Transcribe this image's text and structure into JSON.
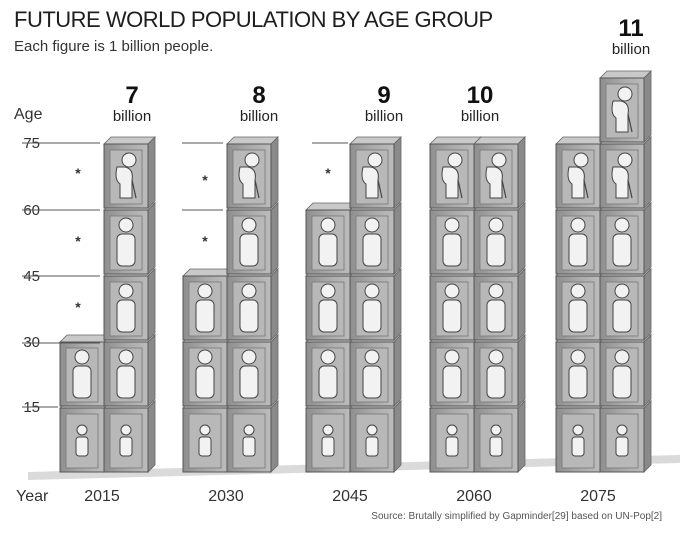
{
  "title": "FUTURE WORLD POPULATION BY AGE GROUP",
  "subtitle": "Each figure is 1 billion people.",
  "source": "Source: Brutally simplified by Gapminder[29] based on UN-Pop[2]",
  "chart_data": {
    "type": "bar",
    "title": "FUTURE WORLD POPULATION BY AGE GROUP",
    "subtitle": "Each figure is 1 billion people.",
    "xlabel": "Year",
    "ylabel": "Age",
    "categories": [
      "2015",
      "2030",
      "2045",
      "2060",
      "2075"
    ],
    "age_ticks": [
      "15",
      "30",
      "45",
      "60",
      "75"
    ],
    "age_bands": [
      "0-15",
      "15-30",
      "30-45",
      "45-60",
      "60-75",
      "75+"
    ],
    "unit_word": "billion",
    "totals": [
      7,
      8,
      9,
      10,
      11
    ],
    "series": [
      {
        "values": [
          2,
          2,
          2,
          2,
          2
        ]
      },
      {
        "values": [
          2,
          2,
          2,
          2,
          2
        ]
      },
      {
        "values": [
          1,
          2,
          2,
          2,
          2
        ]
      },
      {
        "values": [
          1,
          1,
          2,
          2,
          2
        ]
      },
      {
        "values": [
          1,
          1,
          1,
          2,
          2
        ]
      },
      {
        "values": [
          0,
          0,
          0,
          0,
          1
        ]
      }
    ],
    "star_marker": "*",
    "colors": {
      "box": "#a9a9a9",
      "box_light": "#c9c9c9",
      "figure": "#f2f2f2",
      "floor": "#dcdcdc"
    }
  }
}
